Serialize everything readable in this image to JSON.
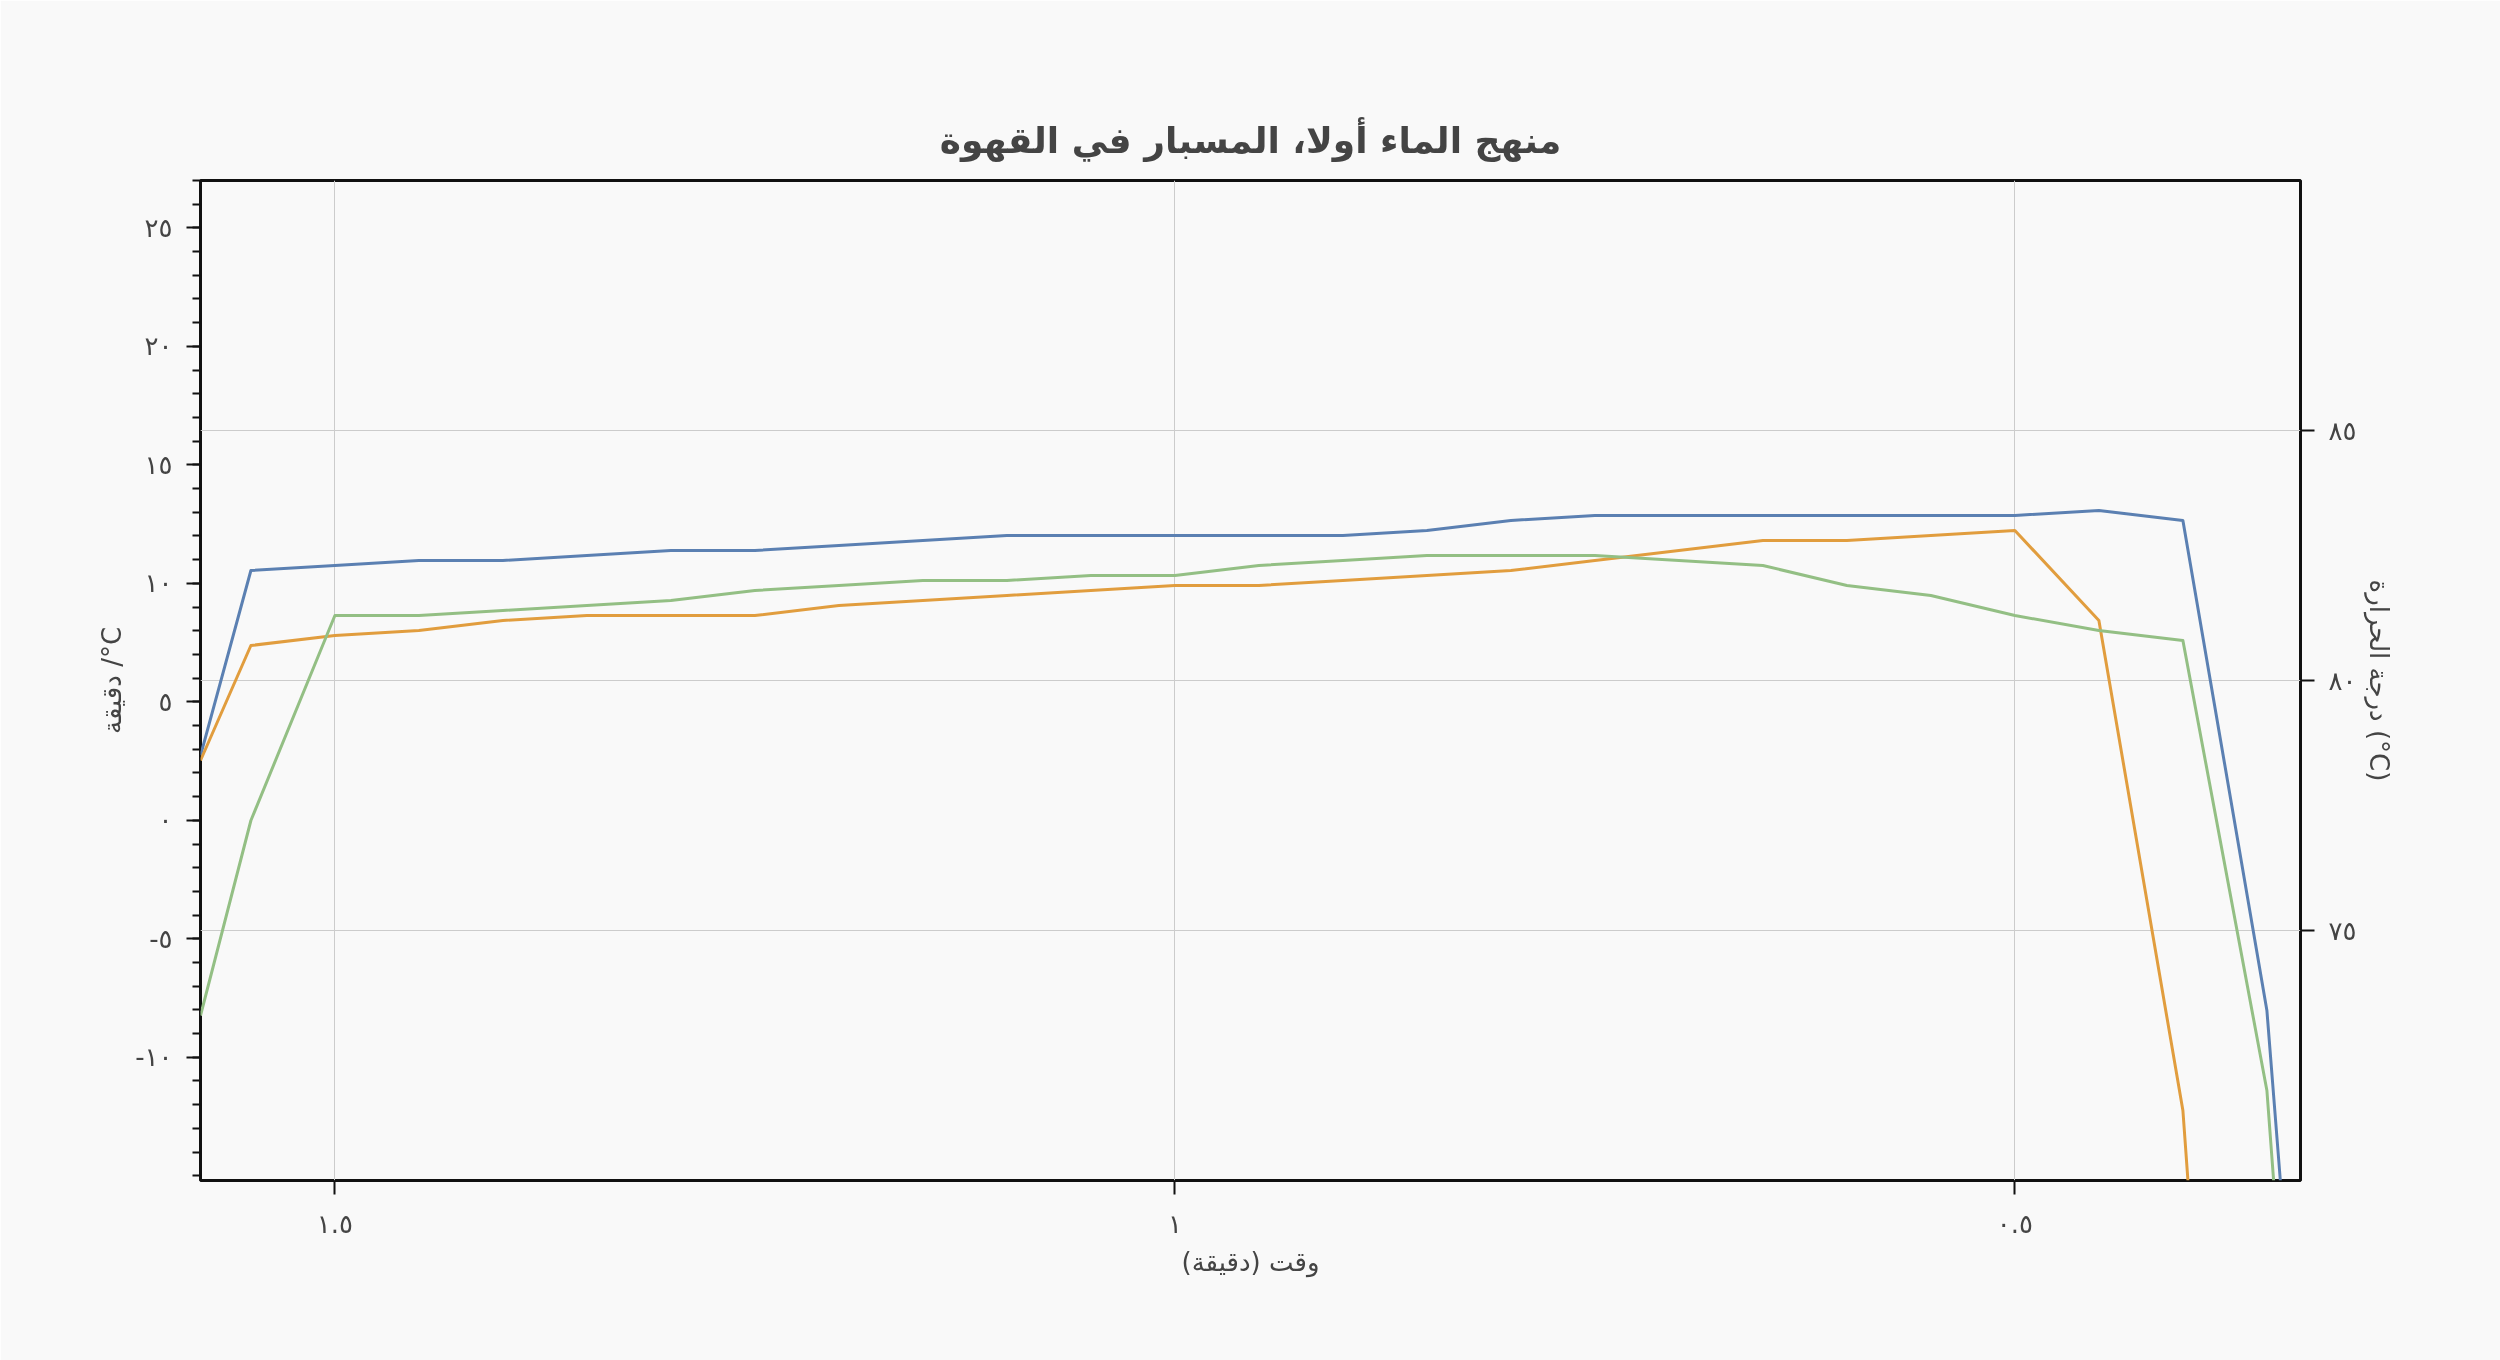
{
  "chart_data": {
    "type": "line",
    "title": "منهج الماء أولا، المسبار في القهوة",
    "xlabel": "وقت (دقيقة)",
    "ylabel": "دقيقة /°C",
    "y2label": "درجة الحرارة (°C)",
    "xlim": [
      1.58,
      0.33
    ],
    "xticks": [
      {
        "value": 1.5,
        "label": "١.٥"
      },
      {
        "value": 1,
        "label": "١"
      },
      {
        "value": 0.5,
        "label": "٠.٥"
      }
    ],
    "ylim": [
      -15.2,
      27
    ],
    "yticks": [
      {
        "value": -10,
        "label": "-١٠"
      },
      {
        "value": -5,
        "label": "-٥"
      },
      {
        "value": 0,
        "label": "٠"
      },
      {
        "value": 5,
        "label": "٥"
      },
      {
        "value": 10,
        "label": "١٠"
      },
      {
        "value": 15,
        "label": "١٥"
      },
      {
        "value": 20,
        "label": "٢٠"
      },
      {
        "value": 25,
        "label": "٢٥"
      }
    ],
    "y2lim": [
      70,
      90
    ],
    "y2ticks": [
      {
        "value": 75,
        "label": "٧٥"
      },
      {
        "value": 80,
        "label": "٨٠"
      },
      {
        "value": 85,
        "label": "٨٥"
      }
    ],
    "grid": true,
    "line_style": "solid",
    "marker": "none",
    "series": [
      {
        "color": "#5b80b2",
        "axis": "y2",
        "x": [
          1.58,
          1.55,
          1.5,
          1.45,
          1.4,
          1.35,
          1.3,
          1.25,
          1.2,
          1.15,
          1.1,
          1.05,
          1.0,
          0.95,
          0.9,
          0.85,
          0.8,
          0.75,
          0.7,
          0.65,
          0.6,
          0.55,
          0.5,
          0.45,
          0.4,
          0.35,
          0.342
        ],
        "values": [
          78.5,
          82.2,
          82.3,
          82.4,
          82.4,
          82.5,
          82.6,
          82.6,
          82.7,
          82.8,
          82.9,
          82.9,
          82.9,
          82.9,
          82.9,
          83.0,
          83.2,
          83.3,
          83.3,
          83.3,
          83.3,
          83.3,
          83.3,
          83.4,
          83.2,
          73.4,
          70.0
        ]
      },
      {
        "color": "#e19d3e",
        "axis": "y2",
        "x": [
          1.58,
          1.55,
          1.5,
          1.45,
          1.4,
          1.35,
          1.3,
          1.25,
          1.2,
          1.15,
          1.1,
          1.05,
          1.0,
          0.95,
          0.9,
          0.85,
          0.8,
          0.75,
          0.7,
          0.65,
          0.6,
          0.55,
          0.5,
          0.45,
          0.4,
          0.397
        ],
        "values": [
          78.4,
          80.7,
          80.9,
          81.0,
          81.2,
          81.3,
          81.3,
          81.3,
          81.5,
          81.6,
          81.7,
          81.8,
          81.9,
          81.9,
          82.0,
          82.1,
          82.2,
          82.4,
          82.6,
          82.8,
          82.8,
          82.9,
          83.0,
          81.2,
          71.4,
          70.0
        ]
      },
      {
        "color": "#93bf84",
        "axis": "y2",
        "x": [
          1.58,
          1.55,
          1.5,
          1.45,
          1.4,
          1.35,
          1.3,
          1.25,
          1.2,
          1.15,
          1.1,
          1.05,
          1.0,
          0.95,
          0.9,
          0.85,
          0.8,
          0.75,
          0.7,
          0.65,
          0.6,
          0.55,
          0.5,
          0.45,
          0.4,
          0.35,
          0.346
        ],
        "values": [
          73.3,
          77.2,
          81.3,
          81.3,
          81.4,
          81.5,
          81.6,
          81.8,
          81.9,
          82.0,
          82.0,
          82.1,
          82.1,
          82.3,
          82.4,
          82.5,
          82.5,
          82.5,
          82.4,
          82.3,
          81.9,
          81.7,
          81.3,
          81.0,
          80.8,
          71.8,
          70.0
        ]
      }
    ]
  }
}
